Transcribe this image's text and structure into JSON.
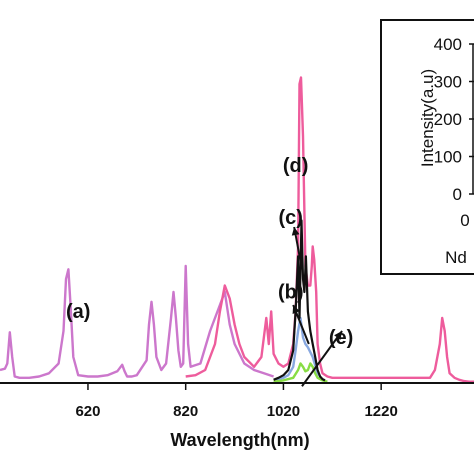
{
  "chart_data": [
    {
      "type": "line",
      "title": "",
      "xlabel": "Wavelength(nm)",
      "ylabel": "",
      "xlim": [
        440,
        1410
      ],
      "ylim": [
        0,
        400
      ],
      "x_ticks": [
        620,
        820,
        1020,
        1220
      ],
      "grid": false,
      "legend": "none",
      "colors": {
        "a": "#cc77cc",
        "d": "#ee5c9c",
        "c": "#111111",
        "b": "#88a8e0",
        "e": "#88dd44"
      },
      "annotations": [
        {
          "text": "(a)",
          "x": 600,
          "y": 100
        },
        {
          "text": "(d)",
          "x": 1045,
          "y": 325
        },
        {
          "text": "(c)",
          "x": 1035,
          "y": 245
        },
        {
          "text": "(b)",
          "x": 1035,
          "y": 130
        },
        {
          "text": "(e)",
          "x": 1138,
          "y": 60
        }
      ],
      "series": [
        {
          "key": "a",
          "x": [
            440,
            450,
            455,
            460,
            465,
            470,
            480,
            500,
            520,
            540,
            560,
            570,
            575,
            580,
            585,
            590,
            600,
            620,
            640,
            660,
            680,
            690,
            695,
            700,
            710,
            720,
            740,
            745,
            750,
            755,
            760,
            770,
            780,
            790,
            795,
            800,
            805,
            810,
            815,
            820,
            825,
            830,
            850,
            870,
            890,
            900,
            910,
            920,
            940,
            960,
            980,
            1000
          ],
          "y": [
            20,
            22,
            30,
            78,
            40,
            10,
            8,
            8,
            10,
            15,
            30,
            80,
            160,
            175,
            110,
            40,
            12,
            10,
            10,
            12,
            18,
            28,
            18,
            10,
            10,
            12,
            35,
            90,
            125,
            90,
            40,
            20,
            30,
            100,
            140,
            100,
            50,
            25,
            30,
            180,
            60,
            25,
            30,
            80,
            120,
            140,
            90,
            60,
            30,
            20,
            15,
            10
          ]
        },
        {
          "key": "d",
          "x": [
            820,
            840,
            860,
            880,
            890,
            900,
            910,
            920,
            930,
            940,
            960,
            975,
            985,
            990,
            995,
            1000,
            1010,
            1020,
            1030,
            1040,
            1045,
            1050,
            1053,
            1056,
            1060,
            1065,
            1070,
            1075,
            1078,
            1080,
            1083,
            1087,
            1090,
            1095,
            1100,
            1110,
            1120,
            1140,
            1160,
            1180,
            1200,
            1220,
            1240,
            1260,
            1280,
            1300,
            1320,
            1330,
            1340,
            1345,
            1350,
            1355,
            1360,
            1370,
            1380,
            1390,
            1400,
            1410
          ],
          "y": [
            10,
            12,
            20,
            60,
            110,
            150,
            130,
            90,
            60,
            40,
            25,
            40,
            100,
            60,
            110,
            45,
            30,
            25,
            30,
            60,
            110,
            210,
            460,
            470,
            380,
            180,
            150,
            150,
            180,
            210,
            190,
            140,
            60,
            30,
            15,
            10,
            8,
            8,
            8,
            8,
            8,
            8,
            8,
            8,
            8,
            8,
            8,
            20,
            60,
            100,
            80,
            40,
            15,
            8,
            5,
            3,
            2,
            2
          ]
        },
        {
          "key": "c",
          "x": [
            1000,
            1010,
            1020,
            1030,
            1040,
            1045,
            1050,
            1053,
            1057,
            1060,
            1063,
            1066,
            1070,
            1075,
            1080,
            1085,
            1090,
            1095,
            1100,
            1105
          ],
          "y": [
            5,
            8,
            12,
            20,
            50,
            110,
            195,
            100,
            250,
            160,
            140,
            195,
            110,
            80,
            60,
            40,
            20,
            10,
            6,
            4
          ]
        },
        {
          "key": "b",
          "x": [
            1005,
            1020,
            1030,
            1040,
            1045,
            1050,
            1055,
            1060,
            1065,
            1070,
            1080,
            1090,
            1100
          ],
          "y": [
            5,
            8,
            12,
            25,
            50,
            80,
            100,
            70,
            60,
            55,
            40,
            15,
            5
          ]
        },
        {
          "key": "e",
          "x": [
            1000,
            1020,
            1040,
            1050,
            1055,
            1060,
            1065,
            1070,
            1075,
            1080,
            1085,
            1090,
            1100,
            1110
          ],
          "y": [
            2,
            4,
            8,
            20,
            30,
            25,
            18,
            20,
            30,
            25,
            15,
            8,
            4,
            2
          ]
        }
      ]
    },
    {
      "type": "line",
      "title": "",
      "xlabel": "Nd",
      "ylabel": "Intensity(a.u)",
      "ylim": [
        0,
        400
      ],
      "y_ticks": [
        0,
        100,
        200,
        300,
        400
      ],
      "x_ticks": [
        0
      ],
      "legend": "none",
      "series": []
    }
  ]
}
